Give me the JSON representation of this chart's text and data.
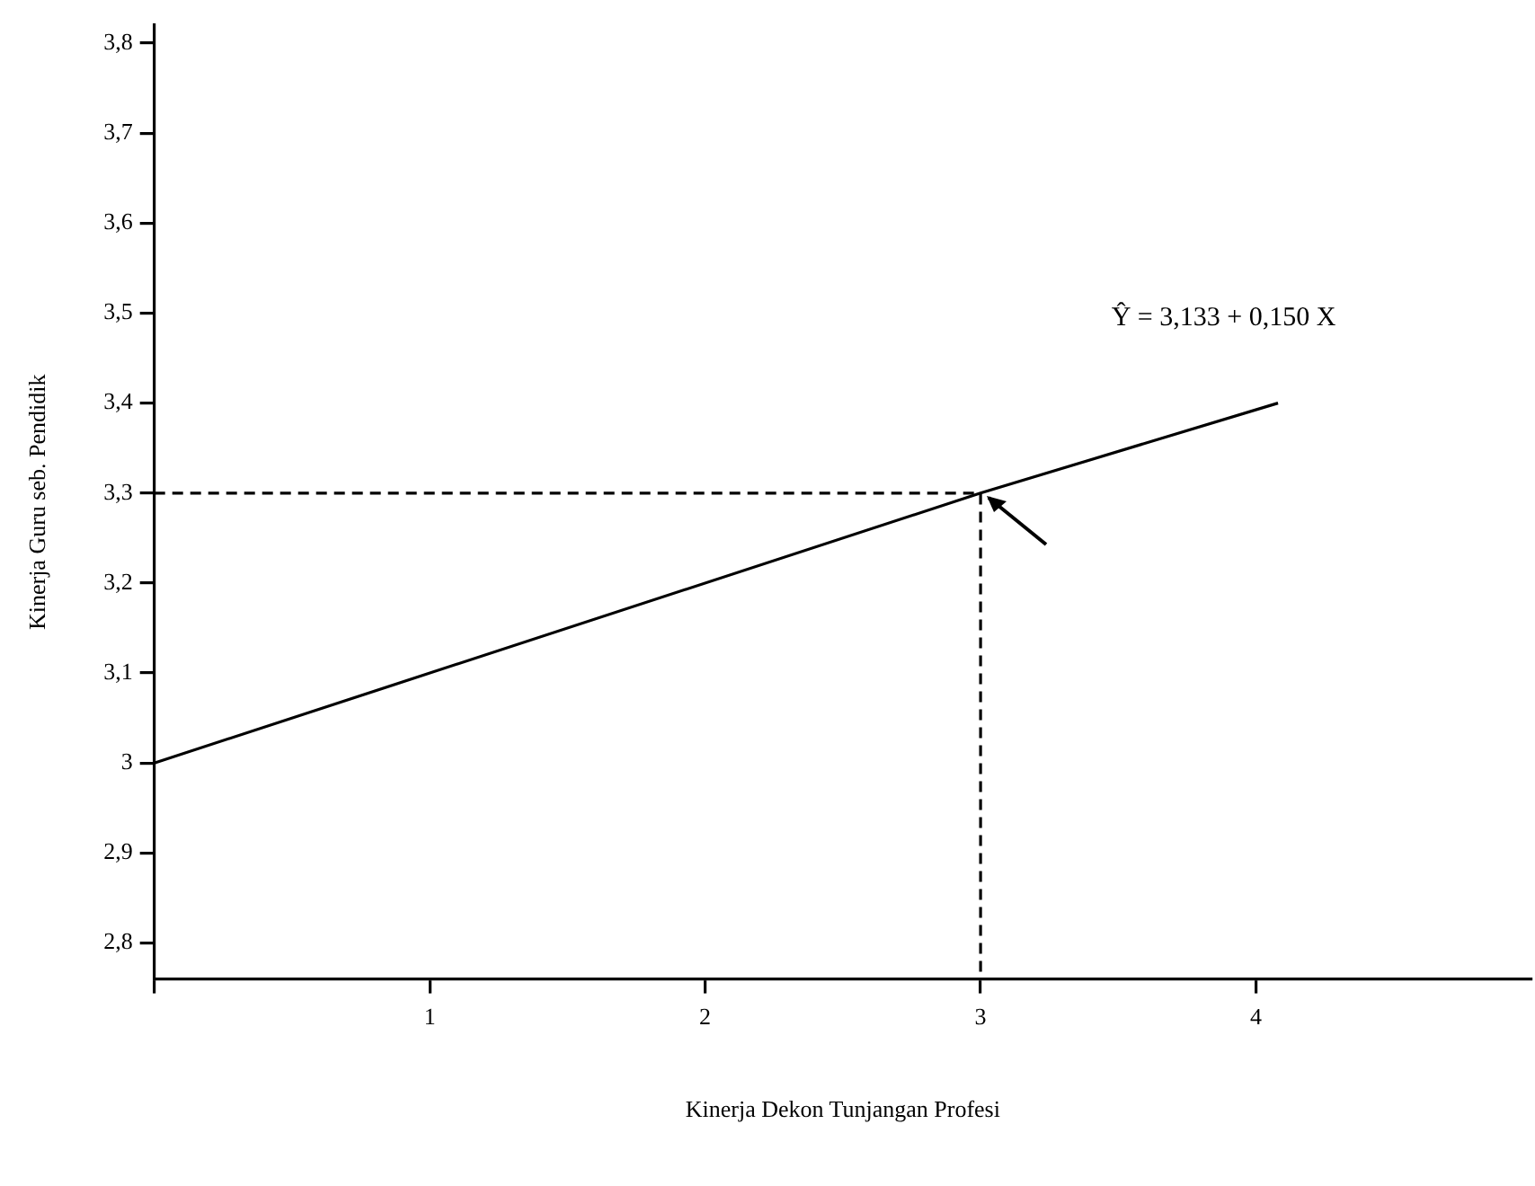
{
  "chart_data": {
    "type": "line",
    "xlabel": "Kinerja Dekon Tunjangan Profesi",
    "ylabel": "Kinerja Guru seb. Pendidik",
    "annotations": [
      "Ŷ = 3,133 + 0,150 X"
    ],
    "series": [
      {
        "color": "#000000",
        "x": [
          0,
          3,
          4.08
        ],
        "values": [
          3.0,
          3.3,
          3.4
        ],
        "line_style": "solid"
      },
      {
        "color": "#000000",
        "x": [
          0,
          3,
          3
        ],
        "values": [
          3.3,
          3.3,
          2.76
        ],
        "line_style": "dashed"
      }
    ],
    "marker": "none",
    "grid": false,
    "legend": false,
    "xlim": [
      0,
      5
    ],
    "xticks": [
      {
        "value": 0,
        "label": null
      },
      1,
      2,
      3,
      4
    ],
    "ylim": [
      2.76,
      3.82
    ],
    "yticks": [
      {
        "value": 2.8,
        "label": "2,8"
      },
      {
        "value": 2.9,
        "label": "2,9"
      },
      3,
      {
        "value": 3.1,
        "label": "3,1"
      },
      {
        "value": 3.2,
        "label": "3,2"
      },
      {
        "value": 3.3,
        "label": "3,3"
      },
      {
        "value": 3.4,
        "label": "3,4"
      },
      {
        "value": 3.5,
        "label": "3,5"
      },
      {
        "value": 3.6,
        "label": "3,6"
      },
      {
        "value": 3.7,
        "label": "3,7"
      },
      {
        "value": 3.8,
        "label": "3,8"
      }
    ]
  }
}
